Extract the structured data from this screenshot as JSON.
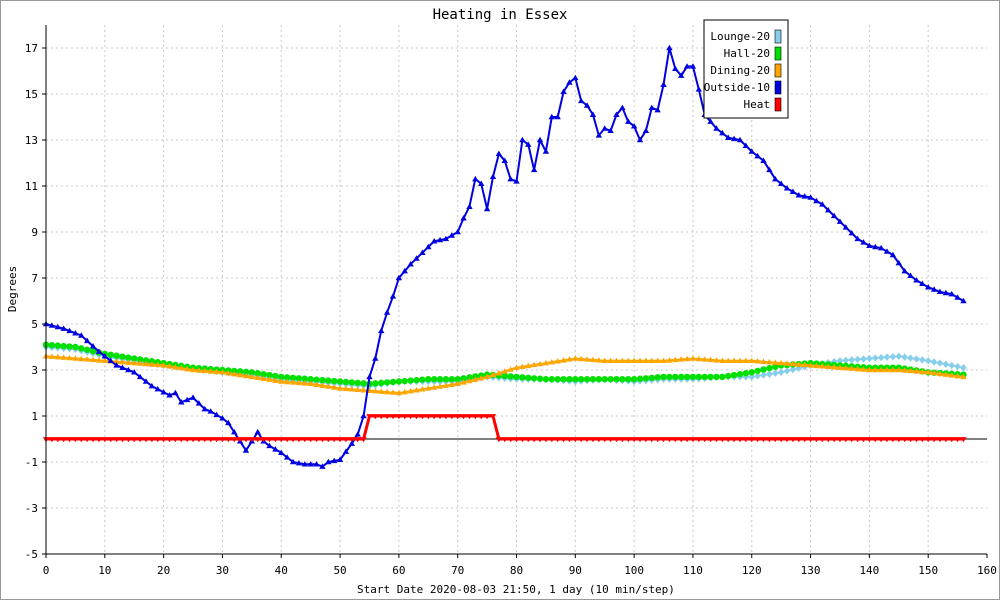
{
  "chart_data": {
    "type": "line",
    "title": "Heating in Essex",
    "xlabel": "Start Date 2020-08-03 21:50, 1 day (10 min/step)",
    "ylabel": "Degrees",
    "xlim": [
      0,
      160
    ],
    "ylim": [
      -5,
      18
    ],
    "x_ticks": [
      0,
      10,
      20,
      30,
      40,
      50,
      60,
      70,
      80,
      90,
      100,
      110,
      120,
      130,
      140,
      150,
      160
    ],
    "y_ticks": [
      -5,
      -3,
      -1,
      1,
      3,
      5,
      7,
      9,
      11,
      13,
      15,
      17
    ],
    "grid": true,
    "legend_position": "top-right",
    "series": [
      {
        "name": "Lounge-20",
        "color": "#87ceeb",
        "marker": "diamond",
        "points": [
          [
            0,
            4.0
          ],
          [
            5,
            3.9
          ],
          [
            10,
            3.6
          ],
          [
            15,
            3.4
          ],
          [
            20,
            3.2
          ],
          [
            25,
            3.1
          ],
          [
            30,
            2.9
          ],
          [
            35,
            2.8
          ],
          [
            40,
            2.6
          ],
          [
            45,
            2.5
          ],
          [
            50,
            2.4
          ],
          [
            55,
            2.3
          ],
          [
            60,
            2.5
          ],
          [
            65,
            2.5
          ],
          [
            70,
            2.5
          ],
          [
            75,
            2.7
          ],
          [
            80,
            2.6
          ],
          [
            85,
            2.6
          ],
          [
            90,
            2.5
          ],
          [
            95,
            2.6
          ],
          [
            100,
            2.5
          ],
          [
            105,
            2.6
          ],
          [
            110,
            2.6
          ],
          [
            115,
            2.7
          ],
          [
            120,
            2.7
          ],
          [
            125,
            2.9
          ],
          [
            130,
            3.2
          ],
          [
            135,
            3.4
          ],
          [
            140,
            3.5
          ],
          [
            145,
            3.6
          ],
          [
            150,
            3.4
          ],
          [
            156,
            3.1
          ]
        ]
      },
      {
        "name": "Hall-20",
        "color": "#00e000",
        "marker": "circle",
        "points": [
          [
            0,
            4.1
          ],
          [
            5,
            4.0
          ],
          [
            10,
            3.7
          ],
          [
            15,
            3.5
          ],
          [
            20,
            3.3
          ],
          [
            25,
            3.1
          ],
          [
            30,
            3.0
          ],
          [
            35,
            2.9
          ],
          [
            40,
            2.7
          ],
          [
            45,
            2.6
          ],
          [
            50,
            2.5
          ],
          [
            55,
            2.4
          ],
          [
            60,
            2.5
          ],
          [
            65,
            2.6
          ],
          [
            70,
            2.6
          ],
          [
            75,
            2.8
          ],
          [
            80,
            2.7
          ],
          [
            85,
            2.6
          ],
          [
            90,
            2.6
          ],
          [
            95,
            2.6
          ],
          [
            100,
            2.6
          ],
          [
            105,
            2.7
          ],
          [
            110,
            2.7
          ],
          [
            115,
            2.7
          ],
          [
            120,
            2.9
          ],
          [
            125,
            3.2
          ],
          [
            130,
            3.3
          ],
          [
            135,
            3.2
          ],
          [
            140,
            3.1
          ],
          [
            145,
            3.1
          ],
          [
            150,
            2.9
          ],
          [
            156,
            2.8
          ]
        ]
      },
      {
        "name": "Dining-20",
        "color": "#ffa500",
        "marker": "triangle",
        "points": [
          [
            0,
            3.6
          ],
          [
            5,
            3.5
          ],
          [
            10,
            3.4
          ],
          [
            15,
            3.3
          ],
          [
            20,
            3.2
          ],
          [
            25,
            3.0
          ],
          [
            30,
            2.9
          ],
          [
            35,
            2.7
          ],
          [
            40,
            2.5
          ],
          [
            45,
            2.4
          ],
          [
            50,
            2.2
          ],
          [
            55,
            2.1
          ],
          [
            60,
            2.0
          ],
          [
            65,
            2.2
          ],
          [
            70,
            2.4
          ],
          [
            75,
            2.7
          ],
          [
            80,
            3.1
          ],
          [
            85,
            3.3
          ],
          [
            90,
            3.5
          ],
          [
            95,
            3.4
          ],
          [
            100,
            3.4
          ],
          [
            105,
            3.4
          ],
          [
            110,
            3.5
          ],
          [
            115,
            3.4
          ],
          [
            120,
            3.4
          ],
          [
            125,
            3.3
          ],
          [
            130,
            3.2
          ],
          [
            135,
            3.1
          ],
          [
            140,
            3.0
          ],
          [
            145,
            3.0
          ],
          [
            150,
            2.9
          ],
          [
            156,
            2.7
          ]
        ]
      },
      {
        "name": "Outside-10",
        "color": "#0000e0",
        "marker": "triangle",
        "points": [
          [
            0,
            5.0
          ],
          [
            3,
            4.8
          ],
          [
            6,
            4.5
          ],
          [
            9,
            3.8
          ],
          [
            12,
            3.2
          ],
          [
            15,
            2.9
          ],
          [
            18,
            2.3
          ],
          [
            21,
            1.9
          ],
          [
            22,
            2.0
          ],
          [
            23,
            1.6
          ],
          [
            25,
            1.8
          ],
          [
            27,
            1.3
          ],
          [
            28,
            1.2
          ],
          [
            30,
            0.9
          ],
          [
            31,
            0.7
          ],
          [
            33,
            -0.1
          ],
          [
            34,
            -0.5
          ],
          [
            36,
            0.3
          ],
          [
            37,
            -0.1
          ],
          [
            38,
            -0.3
          ],
          [
            40,
            -0.6
          ],
          [
            42,
            -1.0
          ],
          [
            44,
            -1.1
          ],
          [
            46,
            -1.1
          ],
          [
            47,
            -1.2
          ],
          [
            48,
            -1.0
          ],
          [
            50,
            -0.9
          ],
          [
            52,
            -0.2
          ],
          [
            53,
            0.2
          ],
          [
            54,
            1.0
          ],
          [
            55,
            2.7
          ],
          [
            56,
            3.5
          ],
          [
            57,
            4.7
          ],
          [
            58,
            5.5
          ],
          [
            59,
            6.2
          ],
          [
            60,
            7.0
          ],
          [
            62,
            7.6
          ],
          [
            64,
            8.1
          ],
          [
            66,
            8.6
          ],
          [
            68,
            8.7
          ],
          [
            70,
            9.0
          ],
          [
            71,
            9.6
          ],
          [
            72,
            10.1
          ],
          [
            73,
            11.3
          ],
          [
            74,
            11.1
          ],
          [
            75,
            10.0
          ],
          [
            76,
            11.4
          ],
          [
            77,
            12.4
          ],
          [
            78,
            12.1
          ],
          [
            79,
            11.3
          ],
          [
            80,
            11.2
          ],
          [
            81,
            13.0
          ],
          [
            82,
            12.8
          ],
          [
            83,
            11.7
          ],
          [
            84,
            13.0
          ],
          [
            85,
            12.5
          ],
          [
            86,
            14.0
          ],
          [
            87,
            14.0
          ],
          [
            88,
            15.1
          ],
          [
            89,
            15.5
          ],
          [
            90,
            15.7
          ],
          [
            91,
            14.7
          ],
          [
            92,
            14.5
          ],
          [
            93,
            14.1
          ],
          [
            94,
            13.2
          ],
          [
            95,
            13.5
          ],
          [
            96,
            13.4
          ],
          [
            97,
            14.1
          ],
          [
            98,
            14.4
          ],
          [
            99,
            13.8
          ],
          [
            100,
            13.6
          ],
          [
            101,
            13.0
          ],
          [
            102,
            13.4
          ],
          [
            103,
            14.4
          ],
          [
            104,
            14.3
          ],
          [
            105,
            15.4
          ],
          [
            106,
            17.0
          ],
          [
            107,
            16.1
          ],
          [
            108,
            15.8
          ],
          [
            109,
            16.2
          ],
          [
            110,
            16.2
          ],
          [
            111,
            15.2
          ],
          [
            112,
            14.1
          ],
          [
            114,
            13.5
          ],
          [
            116,
            13.1
          ],
          [
            118,
            13.0
          ],
          [
            120,
            12.5
          ],
          [
            122,
            12.1
          ],
          [
            124,
            11.3
          ],
          [
            126,
            10.9
          ],
          [
            128,
            10.6
          ],
          [
            130,
            10.5
          ],
          [
            132,
            10.2
          ],
          [
            134,
            9.7
          ],
          [
            136,
            9.2
          ],
          [
            138,
            8.7
          ],
          [
            140,
            8.4
          ],
          [
            142,
            8.3
          ],
          [
            144,
            8.0
          ],
          [
            146,
            7.3
          ],
          [
            148,
            6.9
          ],
          [
            150,
            6.6
          ],
          [
            152,
            6.4
          ],
          [
            154,
            6.3
          ],
          [
            156,
            6.0
          ]
        ]
      },
      {
        "name": "Heat",
        "color": "#ff0000",
        "marker": "triangle-down",
        "points": [
          [
            0,
            0
          ],
          [
            53,
            0
          ],
          [
            54,
            0
          ],
          [
            55,
            1
          ],
          [
            76,
            1
          ],
          [
            77,
            0
          ],
          [
            156,
            0
          ]
        ]
      }
    ]
  }
}
